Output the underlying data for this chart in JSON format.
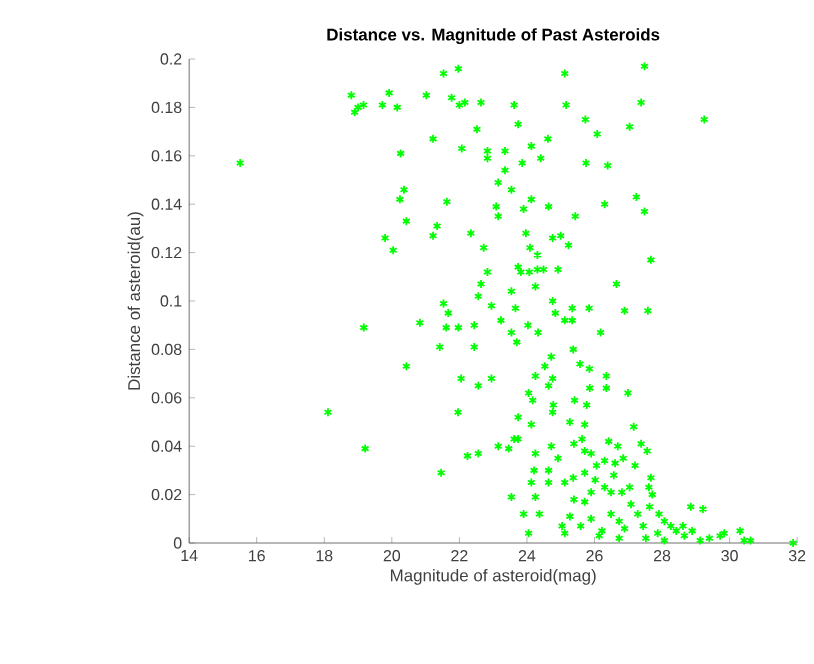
{
  "chart_data": {
    "type": "scatter",
    "title": "Distance vs. Magnitude of Past Asteroids",
    "xlabel": "Magnitude of asteroid(mag)",
    "ylabel": "Distance of asteroid(au)",
    "xlim": [
      14,
      32
    ],
    "ylim": [
      0,
      0.2
    ],
    "xticks": [
      14,
      16,
      18,
      20,
      22,
      24,
      26,
      28,
      30,
      32
    ],
    "yticks": [
      0,
      0.02,
      0.04,
      0.06,
      0.08,
      0.1,
      0.12,
      0.14,
      0.16,
      0.18,
      0.2
    ],
    "marker": "cross",
    "series": [
      {
        "color": "#00ff00",
        "x": [
          15.51,
          18.8,
          18.9,
          19.0,
          19.16,
          19.72,
          19.92,
          20.16,
          21.02,
          21.22,
          21.53,
          21.77,
          21.97,
          22.0,
          22.16,
          22.07,
          22.64,
          22.52,
          22.83,
          22.83,
          23.35,
          23.62,
          23.74,
          24.13,
          24.41,
          24.62,
          25.12,
          25.16,
          25.73,
          26.08,
          27.04,
          27.38,
          27.48,
          29.25,
          25.75,
          26.39,
          23.86,
          23.35,
          23.54,
          23.15,
          20.26,
          20.36,
          20.24,
          20.43,
          19.8,
          20.04,
          21.63,
          21.34,
          21.22,
          22.34,
          22.72,
          23.09,
          23.15,
          23.97,
          24.09,
          24.13,
          23.9,
          24.64,
          24.76,
          25.0,
          25.23,
          25.43,
          26.3,
          27.24,
          27.48,
          27.67,
          24.31,
          24.31,
          24.49,
          23.74,
          23.82,
          24.07,
          24.92,
          26.65,
          22.83,
          22.64,
          22.56,
          22.95,
          21.53,
          21.67,
          19.17,
          20.83,
          21.61,
          21.97,
          22.44,
          22.44,
          21.42,
          23.23,
          23.54,
          23.66,
          24.25,
          24.76,
          24.84,
          25.12,
          25.34,
          25.84,
          25.34,
          24.03,
          24.33,
          23.54,
          23.7,
          26.18,
          26.89,
          27.58,
          20.43,
          22.05,
          22.95,
          22.56,
          21.96,
          18.11,
          19.21,
          21.46,
          22.24,
          22.56,
          23.15,
          23.46,
          23.62,
          23.74,
          24.05,
          24.17,
          24.25,
          24.53,
          24.72,
          24.76,
          24.64,
          25.37,
          25.57,
          25.85,
          25.86,
          26.35,
          26.35,
          26.99,
          25.77,
          25.41,
          25.27,
          24.78,
          24.76,
          24.13,
          23.74,
          24.25,
          24.21,
          24.13,
          24.25,
          23.9,
          24.05,
          23.54,
          24.37,
          24.64,
          24.72,
          24.92,
          25.39,
          25.63,
          25.71,
          25.9,
          25.71,
          27.16,
          27.56,
          27.38,
          26.42,
          26.69,
          26.85,
          27.2,
          27.67,
          27.61,
          27.71,
          27.63,
          27.91,
          28.07,
          28.42,
          28.62,
          28.85,
          29.21,
          28.89,
          29.4,
          29.72,
          29.84,
          30.31,
          30.62,
          30.43,
          31.88,
          25.71,
          26.02,
          26.3,
          26.49,
          25.9,
          25.71,
          25.39,
          25.27,
          25.04,
          25.12,
          25.59,
          25.9,
          26.22,
          26.49,
          26.73,
          26.89,
          27.08,
          26.81,
          27.04,
          27.28,
          27.44,
          27.87,
          27.52,
          26.73,
          26.14,
          26.61,
          26.3,
          26.06,
          26.57,
          25.37,
          25.12,
          24.64,
          28.26,
          28.66,
          28.07,
          29.13
        ],
        "values": [
          0.157,
          0.185,
          0.178,
          0.18,
          0.181,
          0.181,
          0.186,
          0.18,
          0.185,
          0.167,
          0.194,
          0.184,
          0.196,
          0.181,
          0.182,
          0.163,
          0.182,
          0.171,
          0.162,
          0.159,
          0.162,
          0.181,
          0.173,
          0.164,
          0.159,
          0.167,
          0.194,
          0.181,
          0.175,
          0.169,
          0.172,
          0.182,
          0.197,
          0.175,
          0.157,
          0.156,
          0.157,
          0.154,
          0.146,
          0.149,
          0.161,
          0.146,
          0.142,
          0.133,
          0.126,
          0.121,
          0.141,
          0.131,
          0.127,
          0.128,
          0.122,
          0.139,
          0.135,
          0.128,
          0.122,
          0.142,
          0.138,
          0.139,
          0.126,
          0.127,
          0.123,
          0.135,
          0.14,
          0.143,
          0.137,
          0.117,
          0.119,
          0.113,
          0.113,
          0.114,
          0.112,
          0.112,
          0.113,
          0.107,
          0.112,
          0.107,
          0.102,
          0.098,
          0.099,
          0.095,
          0.089,
          0.091,
          0.089,
          0.089,
          0.09,
          0.081,
          0.081,
          0.092,
          0.104,
          0.097,
          0.106,
          0.1,
          0.095,
          0.092,
          0.097,
          0.097,
          0.092,
          0.09,
          0.087,
          0.087,
          0.083,
          0.087,
          0.096,
          0.096,
          0.073,
          0.068,
          0.068,
          0.065,
          0.054,
          0.054,
          0.039,
          0.029,
          0.036,
          0.037,
          0.04,
          0.039,
          0.043,
          0.052,
          0.062,
          0.059,
          0.069,
          0.073,
          0.077,
          0.068,
          0.065,
          0.08,
          0.074,
          0.072,
          0.064,
          0.069,
          0.064,
          0.062,
          0.057,
          0.059,
          0.05,
          0.057,
          0.054,
          0.049,
          0.043,
          0.037,
          0.03,
          0.025,
          0.019,
          0.012,
          0.004,
          0.019,
          0.012,
          0.03,
          0.04,
          0.035,
          0.041,
          0.043,
          0.038,
          0.037,
          0.049,
          0.048,
          0.038,
          0.041,
          0.042,
          0.04,
          0.035,
          0.032,
          0.027,
          0.023,
          0.02,
          0.015,
          0.012,
          0.009,
          0.005,
          0.007,
          0.015,
          0.014,
          0.005,
          0.002,
          0.003,
          0.004,
          0.005,
          0.001,
          0.001,
          0.0,
          0.029,
          0.026,
          0.023,
          0.021,
          0.021,
          0.017,
          0.018,
          0.011,
          0.007,
          0.004,
          0.007,
          0.01,
          0.005,
          0.012,
          0.009,
          0.006,
          0.016,
          0.021,
          0.023,
          0.012,
          0.007,
          0.004,
          0.002,
          0.002,
          0.003,
          0.033,
          0.034,
          0.032,
          0.028,
          0.027,
          0.025,
          0.025,
          0.007,
          0.003,
          0.001,
          0.001
        ]
      }
    ]
  }
}
